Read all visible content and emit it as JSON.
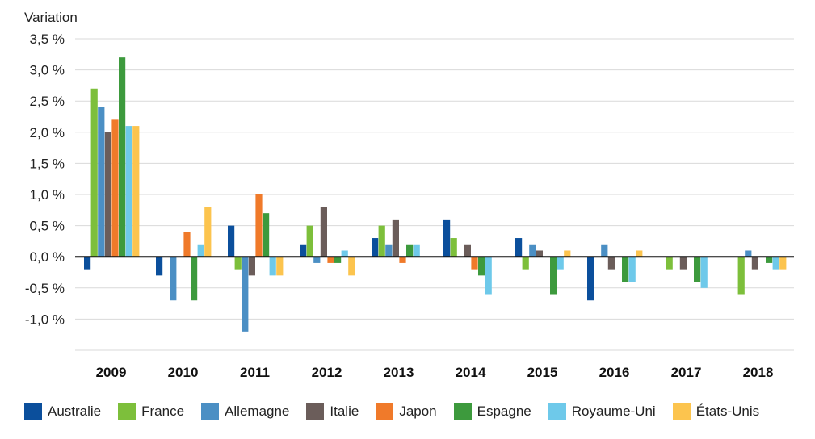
{
  "chart_data": {
    "type": "bar",
    "ylabel": "Variation",
    "ylim": [
      -1.5,
      3.5
    ],
    "yticks": [
      -1.0,
      -0.5,
      0.0,
      0.5,
      1.0,
      1.5,
      2.0,
      2.5,
      3.0,
      3.5
    ],
    "ytick_labels": [
      "-1,0 %",
      "-0,5 %",
      "0,0 %",
      "0,5 %",
      "1,0 %",
      "1,5 %",
      "2,0 %",
      "2,5 %",
      "3,0 %",
      "3,5 %"
    ],
    "grid": "horizontal",
    "legend_position": "bottom",
    "categories": [
      "2009",
      "2010",
      "2011",
      "2012",
      "2013",
      "2014",
      "2015",
      "2016",
      "2017",
      "2018"
    ],
    "series": [
      {
        "name": "Australie",
        "color": "#0b4f9c",
        "values": [
          -0.2,
          -0.3,
          0.5,
          0.2,
          0.3,
          0.6,
          0.3,
          -0.7,
          0.0,
          0.0
        ]
      },
      {
        "name": "France",
        "color": "#7dbf3b",
        "values": [
          2.7,
          0.0,
          -0.2,
          0.5,
          0.5,
          0.3,
          -0.2,
          0.0,
          -0.2,
          -0.6
        ]
      },
      {
        "name": "Allemagne",
        "color": "#4b8fc4",
        "values": [
          2.4,
          -0.7,
          -1.2,
          -0.1,
          0.2,
          0.0,
          0.2,
          0.2,
          0.0,
          0.1
        ]
      },
      {
        "name": "Italie",
        "color": "#6b5d5a",
        "values": [
          2.0,
          0.0,
          -0.3,
          0.8,
          0.6,
          0.2,
          0.1,
          -0.2,
          -0.2,
          -0.2
        ]
      },
      {
        "name": "Japon",
        "color": "#f07a2a",
        "values": [
          2.2,
          0.4,
          1.0,
          -0.1,
          -0.1,
          -0.2,
          0.0,
          0.0,
          0.0,
          0.0
        ]
      },
      {
        "name": "Espagne",
        "color": "#3d9a3d",
        "values": [
          3.2,
          -0.7,
          0.7,
          -0.1,
          0.2,
          -0.3,
          -0.6,
          -0.4,
          -0.4,
          -0.1
        ]
      },
      {
        "name": "Royaume-Uni",
        "color": "#6ec9ea",
        "values": [
          2.1,
          0.2,
          -0.3,
          0.1,
          0.2,
          -0.6,
          -0.2,
          -0.4,
          -0.5,
          -0.2
        ]
      },
      {
        "name": "États-Unis",
        "color": "#fcc44e",
        "values": [
          2.1,
          0.8,
          -0.3,
          -0.3,
          0.0,
          0.0,
          0.1,
          0.1,
          0.0,
          -0.2
        ]
      }
    ]
  }
}
